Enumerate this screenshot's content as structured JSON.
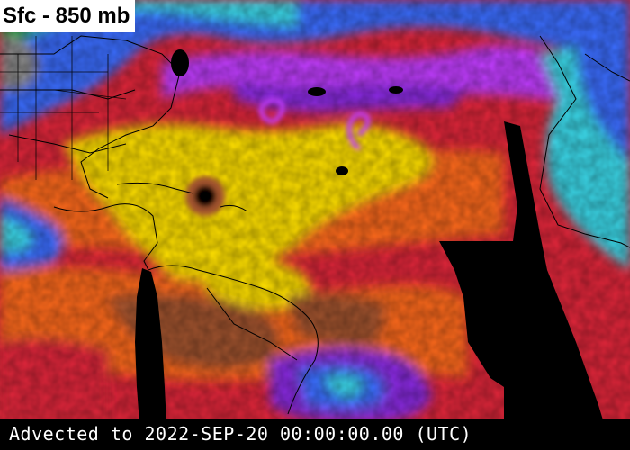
{
  "map": {
    "layer_label": "Sfc - 850 mb",
    "timestamp": "Advected to 2022-SEP-20 00:00:00.00 (UTC)",
    "colors": {
      "land_gray": "#8c8c8c",
      "green": "#2fa84a",
      "cyan": "#3ad7e8",
      "blue": "#3b6dff",
      "magenta": "#c13cff",
      "purple": "#8a2be2",
      "red": "#e0263a",
      "orange": "#ff6a1a",
      "yellow": "#ffe000",
      "brown": "#a0522d",
      "no_data": "#000000",
      "boundaries": "#000000"
    }
  }
}
